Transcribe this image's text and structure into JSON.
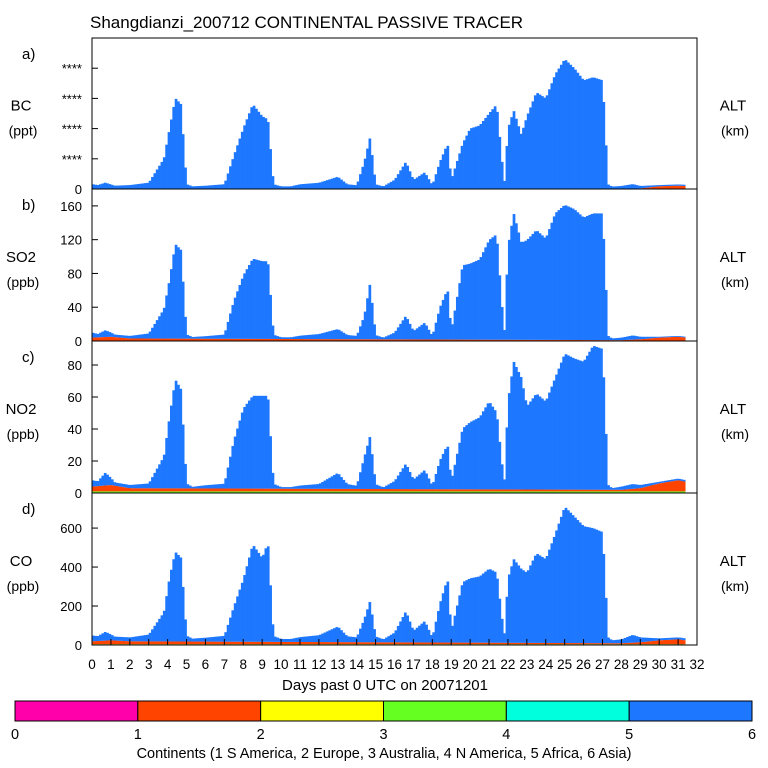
{
  "chart_data": {
    "type": "bar",
    "title": "Shangdianzi_200712 CONTINENTAL PASSIVE TRACER",
    "xlabel": "Days past 0 UTC on 20071201",
    "x_ticks": [
      "0",
      "1",
      "2",
      "3",
      "4",
      "5",
      "6",
      "7",
      "8",
      "9",
      "10",
      "11",
      "12",
      "13",
      "14",
      "15",
      "16",
      "17",
      "18",
      "19",
      "20",
      "21",
      "22",
      "23",
      "24",
      "25",
      "26",
      "27",
      "28",
      "29",
      "30",
      "31",
      "32"
    ],
    "xlim": [
      0,
      32
    ],
    "stacking": "stacked by continent",
    "panels": [
      {
        "letter": "a)",
        "species": "BC",
        "unit": "(ppt)",
        "right_label": "ALT",
        "right_unit": "(km)",
        "ylim": [
          0,
          5000
        ],
        "y_ticks": [
          "0",
          "****",
          "****",
          "****",
          "****"
        ],
        "asia_envelope": {
          "days": [
            0,
            0.3,
            0.7,
            1.2,
            2,
            3,
            3.8,
            4.1,
            4.4,
            4.7,
            5.0,
            5.3,
            6,
            7,
            7.5,
            8,
            8.5,
            9,
            9.3,
            9.6,
            10,
            10.5,
            11,
            12,
            13,
            13.5,
            14,
            14.4,
            14.7,
            15,
            15.4,
            16,
            16.6,
            17,
            17.6,
            18,
            18.4,
            18.8,
            19,
            19.6,
            20,
            20.5,
            21,
            21.4,
            21.8,
            22,
            22.3,
            22.7,
            23,
            23.5,
            24,
            24.5,
            25,
            25.5,
            26,
            26.5,
            27,
            27.3,
            27.5,
            28,
            28.6,
            29,
            30,
            31,
            31.4
          ],
          "values": [
            150,
            120,
            200,
            100,
            120,
            200,
            1000,
            2000,
            3000,
            2800,
            150,
            80,
            100,
            150,
            1100,
            2000,
            2800,
            2400,
            2300,
            150,
            80,
            80,
            150,
            200,
            400,
            150,
            120,
            900,
            1700,
            150,
            80,
            300,
            900,
            300,
            550,
            120,
            900,
            1500,
            300,
            1500,
            2000,
            2100,
            2500,
            2800,
            150,
            2000,
            2600,
            1800,
            2400,
            3200,
            3000,
            3800,
            4300,
            4000,
            3600,
            3700,
            3600,
            150,
            80,
            100,
            150,
            80,
            40,
            40,
            40
          ]
        },
        "africa_envelope": {
          "days": [
            0,
            1,
            2,
            28,
            29,
            30,
            31,
            31.4
          ],
          "values": [
            0,
            0,
            0,
            0,
            0,
            0,
            0,
            0
          ]
        },
        "europe_envelope": {
          "days": [
            0,
            1,
            2,
            28,
            29,
            30,
            31,
            31.4
          ],
          "values": [
            10,
            10,
            10,
            0,
            20,
            90,
            110,
            100
          ]
        },
        "namerica_envelope": {
          "days": [
            0,
            31.4
          ],
          "values": [
            0,
            0
          ]
        }
      },
      {
        "letter": "b)",
        "species": "SO2",
        "unit": "(ppb)",
        "right_label": "ALT",
        "right_unit": "(km)",
        "ylim": [
          0,
          180
        ],
        "y_ticks": [
          "0",
          "40",
          "80",
          "120",
          "160"
        ],
        "asia_envelope": {
          "days": [
            0,
            0.3,
            0.7,
            1.2,
            2,
            3,
            3.8,
            4.1,
            4.4,
            4.7,
            5.0,
            5.3,
            6,
            7,
            7.5,
            8,
            8.5,
            9,
            9.3,
            9.6,
            10,
            10.5,
            11,
            12,
            13,
            13.5,
            14,
            14.4,
            14.7,
            15,
            15.4,
            16,
            16.6,
            17,
            17.6,
            18,
            18.4,
            18.8,
            19,
            19.6,
            20,
            20.5,
            21,
            21.4,
            21.8,
            22,
            22.3,
            22.7,
            23,
            23.5,
            24,
            24.5,
            25,
            25.5,
            26,
            26.5,
            27,
            27.3,
            27.5,
            28,
            28.6,
            29,
            30,
            31,
            31.4
          ],
          "values": [
            6,
            4,
            8,
            3,
            3,
            6,
            35,
            70,
            112,
            105,
            5,
            2,
            3,
            5,
            45,
            75,
            95,
            92,
            92,
            5,
            2,
            2,
            4,
            6,
            12,
            5,
            4,
            28,
            66,
            5,
            2,
            8,
            28,
            10,
            20,
            4,
            38,
            60,
            10,
            88,
            90,
            95,
            118,
            125,
            5,
            110,
            150,
            115,
            118,
            130,
            120,
            150,
            160,
            155,
            145,
            150,
            150,
            5,
            2,
            3,
            5,
            3,
            1,
            1,
            1
          ]
        },
        "africa_envelope": {
          "days": [
            0,
            1,
            2,
            28,
            29,
            30,
            31,
            31.4
          ],
          "values": [
            0,
            0,
            0,
            0,
            0,
            0,
            0,
            0
          ]
        },
        "europe_envelope": {
          "days": [
            0,
            1,
            2,
            28,
            29,
            30,
            31,
            31.4
          ],
          "values": [
            4,
            5,
            3,
            1,
            2,
            4,
            5,
            4
          ]
        },
        "namerica_envelope": {
          "days": [
            0,
            31.4
          ],
          "values": [
            0,
            0
          ]
        }
      },
      {
        "letter": "c)",
        "species": "NO2",
        "unit": "(ppb)",
        "right_label": "ALT",
        "right_unit": "(km)",
        "ylim": [
          0,
          95
        ],
        "y_ticks": [
          "0",
          "20",
          "40",
          "60",
          "80"
        ],
        "asia_envelope": {
          "days": [
            0,
            0.3,
            0.7,
            1.2,
            2,
            3,
            3.8,
            4.1,
            4.4,
            4.7,
            5.0,
            5.3,
            6,
            7,
            7.5,
            8,
            8.5,
            9,
            9.3,
            9.6,
            10,
            10.5,
            11,
            12,
            13,
            13.5,
            14,
            14.4,
            14.7,
            15,
            15.4,
            16,
            16.6,
            17,
            17.6,
            18,
            18.4,
            18.8,
            19,
            19.6,
            20,
            20.5,
            21,
            21.4,
            21.8,
            22,
            22.3,
            22.7,
            23,
            23.5,
            24,
            24.5,
            25,
            25.5,
            26,
            26.5,
            27,
            27.3,
            27.5,
            28,
            28.6,
            29,
            30,
            31,
            31.4
          ],
          "values": [
            4,
            3,
            8,
            2,
            2,
            3,
            20,
            45,
            68,
            62,
            3,
            1,
            2,
            3,
            30,
            50,
            58,
            58,
            58,
            3,
            1,
            1,
            2,
            3,
            10,
            3,
            2,
            20,
            33,
            3,
            1,
            5,
            16,
            6,
            12,
            2,
            18,
            28,
            5,
            38,
            42,
            45,
            55,
            48,
            3,
            55,
            80,
            70,
            52,
            60,
            55,
            70,
            85,
            82,
            80,
            90,
            88,
            3,
            1,
            2,
            3,
            2,
            1,
            1,
            1
          ]
        },
        "africa_envelope": {
          "days": [
            0,
            1,
            2,
            28,
            29,
            30,
            31,
            31.4
          ],
          "values": [
            0,
            0,
            0,
            0,
            0,
            0,
            0,
            0
          ]
        },
        "europe_envelope": {
          "days": [
            0,
            1,
            2,
            28,
            29,
            30,
            31,
            31.4
          ],
          "values": [
            3,
            4,
            2,
            1,
            2,
            5,
            7,
            6
          ]
        },
        "namerica_envelope": {
          "days": [
            0,
            31.4
          ],
          "values": [
            1,
            1
          ]
        }
      },
      {
        "letter": "d)",
        "species": "CO",
        "unit": "(ppb)",
        "right_label": "ALT",
        "right_unit": "(km)",
        "ylim": [
          0,
          780
        ],
        "y_ticks": [
          "0",
          "200",
          "400",
          "600"
        ],
        "asia_envelope": {
          "days": [
            0,
            0.3,
            0.7,
            1.2,
            2,
            3,
            3.8,
            4.1,
            4.4,
            4.7,
            5.0,
            5.3,
            6,
            7,
            7.5,
            8,
            8.5,
            9,
            9.3,
            9.6,
            10,
            10.5,
            11,
            12,
            13,
            13.5,
            14,
            14.4,
            14.7,
            15,
            15.4,
            16,
            16.6,
            17,
            17.6,
            18,
            18.4,
            18.8,
            19,
            19.6,
            20,
            20.5,
            21,
            21.4,
            21.8,
            22,
            22.3,
            22.7,
            23,
            23.5,
            24,
            24.5,
            25,
            25.5,
            26,
            26.5,
            27,
            27.3,
            27.5,
            28,
            28.6,
            29,
            30,
            31,
            31.4
          ],
          "values": [
            30,
            25,
            45,
            20,
            20,
            35,
            150,
            330,
            460,
            430,
            30,
            15,
            20,
            30,
            180,
            320,
            500,
            430,
            510,
            30,
            15,
            15,
            25,
            35,
            80,
            30,
            25,
            120,
            210,
            30,
            15,
            50,
            160,
            60,
            110,
            25,
            200,
            330,
            60,
            310,
            330,
            340,
            380,
            360,
            30,
            330,
            430,
            380,
            360,
            460,
            430,
            560,
            700,
            650,
            600,
            590,
            570,
            30,
            15,
            20,
            40,
            25,
            10,
            10,
            10
          ]
        },
        "africa_envelope": {
          "days": [
            0,
            1,
            2,
            28,
            29,
            30,
            31,
            31.4
          ],
          "values": [
            0,
            0,
            0,
            0,
            0,
            0,
            0,
            0
          ]
        },
        "europe_envelope": {
          "days": [
            0,
            1,
            2,
            28,
            29,
            30,
            31,
            31.4
          ],
          "values": [
            15,
            20,
            15,
            5,
            10,
            20,
            25,
            20
          ]
        },
        "namerica_envelope": {
          "days": [
            0,
            31.4
          ],
          "values": [
            4,
            4
          ]
        }
      }
    ],
    "colorbar": {
      "ticks": [
        "0",
        "1",
        "2",
        "3",
        "4",
        "5",
        "6"
      ],
      "colors": [
        "#ff00aa",
        "#ff4400",
        "#ffff00",
        "#66ff22",
        "#00ffdd",
        "#1e78ff"
      ],
      "label": "Continents (1 S America, 2 Europe, 3 Australia, 4 N America, 5 Africa, 6 Asia)"
    },
    "series_colors": {
      "asia": "#1e78ff",
      "africa": "#00ffdd",
      "namerica": "#66ff22",
      "europe": "#ff4400",
      "samerica": "#ff00aa"
    }
  }
}
